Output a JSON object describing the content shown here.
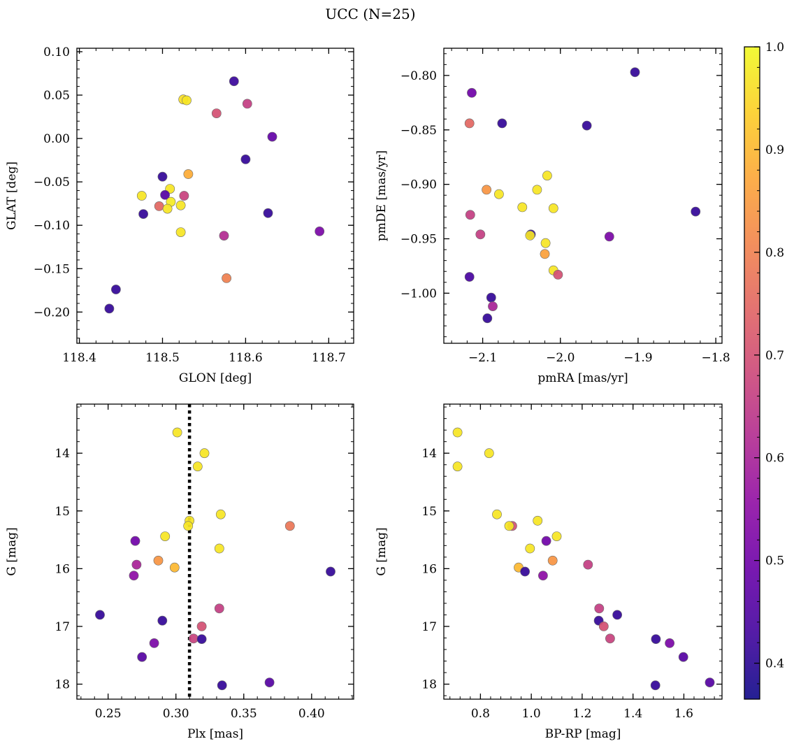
{
  "figure": {
    "title": "UCC (N=25)"
  },
  "colorbar": {
    "vmin": 0.365,
    "vmax": 1.0,
    "ticks": [
      0.4,
      0.5,
      0.6,
      0.7,
      0.8,
      0.9,
      1.0
    ],
    "tick_labels": [
      "0.4",
      "0.5",
      "0.6",
      "0.7",
      "0.8",
      "0.9",
      "1.0"
    ],
    "colormap": "plasma"
  },
  "chart_data": [
    {
      "type": "scatter",
      "title": "",
      "xlabel": "GLON [deg]",
      "ylabel": "GLAT [deg]",
      "xlim": [
        118.397,
        118.73
      ],
      "ylim": [
        -0.236,
        0.104
      ],
      "y_inverted": false,
      "xticks": [
        118.4,
        118.5,
        118.6,
        118.7
      ],
      "xtick_labels": [
        "118.4",
        "118.5",
        "118.6",
        "118.7"
      ],
      "yticks": [
        0.1,
        0.05,
        0.0,
        -0.05,
        -0.1,
        -0.15,
        -0.2
      ],
      "ytick_labels": [
        "0.10",
        "0.05",
        "0.00",
        "−0.05",
        "−0.10",
        "−0.15",
        "−0.20"
      ],
      "x": [
        118.525,
        118.529,
        118.586,
        118.565,
        118.602,
        118.632,
        118.6,
        118.5,
        118.531,
        118.509,
        118.475,
        118.503,
        118.526,
        118.51,
        118.496,
        118.522,
        118.506,
        118.477,
        118.522,
        118.627,
        118.689,
        118.574,
        118.577,
        118.444,
        118.436
      ],
      "y": [
        0.045,
        0.044,
        0.066,
        0.029,
        0.04,
        0.002,
        -0.024,
        -0.044,
        -0.041,
        -0.058,
        -0.066,
        -0.065,
        -0.066,
        -0.073,
        -0.078,
        -0.077,
        -0.081,
        -0.087,
        -0.108,
        -0.086,
        -0.107,
        -0.112,
        -0.161,
        -0.174,
        -0.196
      ],
      "c": [
        0.96,
        0.97,
        0.42,
        0.7,
        0.66,
        0.48,
        0.41,
        0.41,
        0.88,
        0.97,
        0.97,
        0.46,
        0.67,
        0.98,
        0.75,
        0.97,
        0.97,
        0.41,
        0.97,
        0.41,
        0.52,
        0.62,
        0.8,
        0.41,
        0.41
      ]
    },
    {
      "type": "scatter",
      "title": "",
      "xlabel": "pmRA [mas/yr]",
      "ylabel": "pmDE [mas/yr]",
      "xlim": [
        -2.15,
        -1.792
      ],
      "ylim": [
        -1.046,
        -0.775
      ],
      "y_inverted": false,
      "xticks": [
        -2.1,
        -2.0,
        -1.9,
        -1.8
      ],
      "xtick_labels": [
        "−2.1",
        "−2.0",
        "−1.9",
        "−1.8"
      ],
      "yticks": [
        -0.8,
        -0.85,
        -0.9,
        -0.95,
        -1.0
      ],
      "ytick_labels": [
        "−0.80",
        "−0.85",
        "−0.90",
        "−0.95",
        "−1.00"
      ],
      "x": [
        -1.904,
        -2.114,
        -2.117,
        -2.075,
        -1.966,
        -2.017,
        -2.095,
        -2.079,
        -2.03,
        -2.049,
        -2.009,
        -1.826,
        -2.116,
        -2.103,
        -2.038,
        -2.039,
        -1.937,
        -2.019,
        -2.02,
        -2.009,
        -2.003,
        -2.117,
        -2.089,
        -2.087,
        -2.094
      ],
      "y": [
        -0.797,
        -0.816,
        -0.844,
        -0.844,
        -0.846,
        -0.892,
        -0.905,
        -0.909,
        -0.905,
        -0.921,
        -0.922,
        -0.925,
        -0.928,
        -0.946,
        -0.946,
        -0.947,
        -0.948,
        -0.954,
        -0.964,
        -0.979,
        -0.983,
        -0.985,
        -1.004,
        -1.012,
        -1.023
      ],
      "c": [
        0.41,
        0.5,
        0.75,
        0.41,
        0.41,
        0.97,
        0.84,
        0.97,
        0.97,
        0.97,
        0.97,
        0.41,
        0.66,
        0.66,
        0.41,
        0.97,
        0.52,
        0.97,
        0.86,
        0.97,
        0.7,
        0.44,
        0.41,
        0.6,
        0.41
      ]
    },
    {
      "type": "scatter",
      "title": "",
      "xlabel": "Plx [mas]",
      "ylabel": "G [mag]",
      "xlim": [
        0.227,
        0.431
      ],
      "ylim": [
        18.26,
        13.15
      ],
      "y_inverted": true,
      "vline_x": 0.31,
      "xticks": [
        0.25,
        0.3,
        0.35,
        0.4
      ],
      "xtick_labels": [
        "0.25",
        "0.30",
        "0.35",
        "0.40"
      ],
      "yticks": [
        14,
        15,
        16,
        17,
        18
      ],
      "ytick_labels": [
        "14",
        "15",
        "16",
        "17",
        "18"
      ],
      "x": [
        0.301,
        0.321,
        0.316,
        0.333,
        0.31,
        0.309,
        0.384,
        0.292,
        0.27,
        0.332,
        0.287,
        0.271,
        0.299,
        0.269,
        0.414,
        0.332,
        0.244,
        0.29,
        0.319,
        0.313,
        0.319,
        0.284,
        0.275,
        0.369,
        0.334
      ],
      "y": [
        13.64,
        14.0,
        14.23,
        15.06,
        15.17,
        15.26,
        15.26,
        15.44,
        15.52,
        15.65,
        15.86,
        15.93,
        15.98,
        16.12,
        16.05,
        16.69,
        16.8,
        16.9,
        17.0,
        17.21,
        17.22,
        17.29,
        17.53,
        17.97,
        18.02
      ],
      "c": [
        0.97,
        0.97,
        0.97,
        0.97,
        0.97,
        0.97,
        0.78,
        0.97,
        0.5,
        0.97,
        0.84,
        0.6,
        0.9,
        0.55,
        0.41,
        0.66,
        0.41,
        0.41,
        0.7,
        0.67,
        0.41,
        0.52,
        0.46,
        0.46,
        0.41
      ]
    },
    {
      "type": "scatter",
      "title": "",
      "xlabel": "BP-RP [mag]",
      "ylabel": "G [mag]",
      "xlim": [
        0.656,
        1.75
      ],
      "ylim": [
        18.26,
        13.15
      ],
      "y_inverted": true,
      "xticks": [
        0.8,
        1.0,
        1.2,
        1.4,
        1.6
      ],
      "xtick_labels": [
        "0.8",
        "1.0",
        "1.2",
        "1.4",
        "1.6"
      ],
      "yticks": [
        14,
        15,
        16,
        17,
        18
      ],
      "ytick_labels": [
        "14",
        "15",
        "16",
        "17",
        "18"
      ],
      "x": [
        0.71,
        0.71,
        0.834,
        0.865,
        0.925,
        1.025,
        0.913,
        1.1,
        1.059,
        0.995,
        1.084,
        1.223,
        0.95,
        1.046,
        0.975,
        1.267,
        1.338,
        1.265,
        1.285,
        1.31,
        1.49,
        1.544,
        1.598,
        1.702,
        1.488
      ],
      "y": [
        13.64,
        14.23,
        14.0,
        15.06,
        15.26,
        15.17,
        15.26,
        15.44,
        15.52,
        15.65,
        15.86,
        15.93,
        15.98,
        16.12,
        16.05,
        16.69,
        16.8,
        16.9,
        17.0,
        17.21,
        17.22,
        17.29,
        17.53,
        17.97,
        18.02
      ],
      "c": [
        0.97,
        0.97,
        0.97,
        0.97,
        0.7,
        0.97,
        0.97,
        0.97,
        0.5,
        0.97,
        0.84,
        0.66,
        0.9,
        0.55,
        0.41,
        0.66,
        0.41,
        0.41,
        0.7,
        0.67,
        0.41,
        0.52,
        0.46,
        0.46,
        0.41
      ]
    }
  ]
}
